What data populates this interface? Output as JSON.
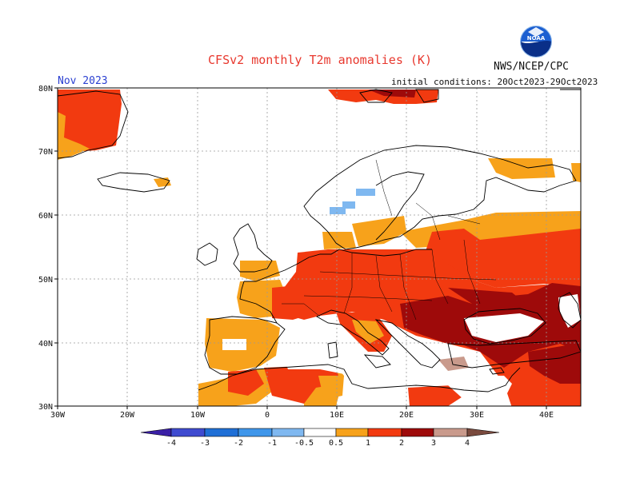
{
  "header": {
    "title": "CFSv2 monthly T2m anomalies (K)",
    "agency": "NWS/NCEP/CPC",
    "month": "Nov 2023",
    "initial_conditions": "initial conditions: 20Oct2023-29Oct2023"
  },
  "map": {
    "lon_range": [
      -30,
      45
    ],
    "lat_range": [
      30,
      80
    ],
    "x_ticks": [
      "30W",
      "20W",
      "10W",
      "0",
      "10E",
      "20E",
      "30E",
      "40E"
    ],
    "y_ticks": [
      "80N",
      "70N",
      "60N",
      "50N",
      "40N",
      "30N"
    ],
    "grid": true
  },
  "colorbar": {
    "labels": [
      "-4",
      "-3",
      "-2",
      "-1",
      "-0.5",
      "0.5",
      "1",
      "2",
      "3",
      "4"
    ],
    "colors": [
      "#3a1fa6",
      "#3f4bd0",
      "#1f6fd6",
      "#3f96ea",
      "#7fb8f0",
      "#ffffff",
      "#f7a21b",
      "#f23a10",
      "#9e0a0a",
      "#c99a8c",
      "#7a4a3e"
    ]
  },
  "anomaly_colors": {
    "cool": "#7fb8f0",
    "warm_1": "#f7a21b",
    "warm_2": "#f23a10",
    "warm_3": "#9e0a0a",
    "warm_4": "#c99a8c"
  },
  "logo": {
    "name": "noaa-logo-icon",
    "text": "NOAA"
  }
}
